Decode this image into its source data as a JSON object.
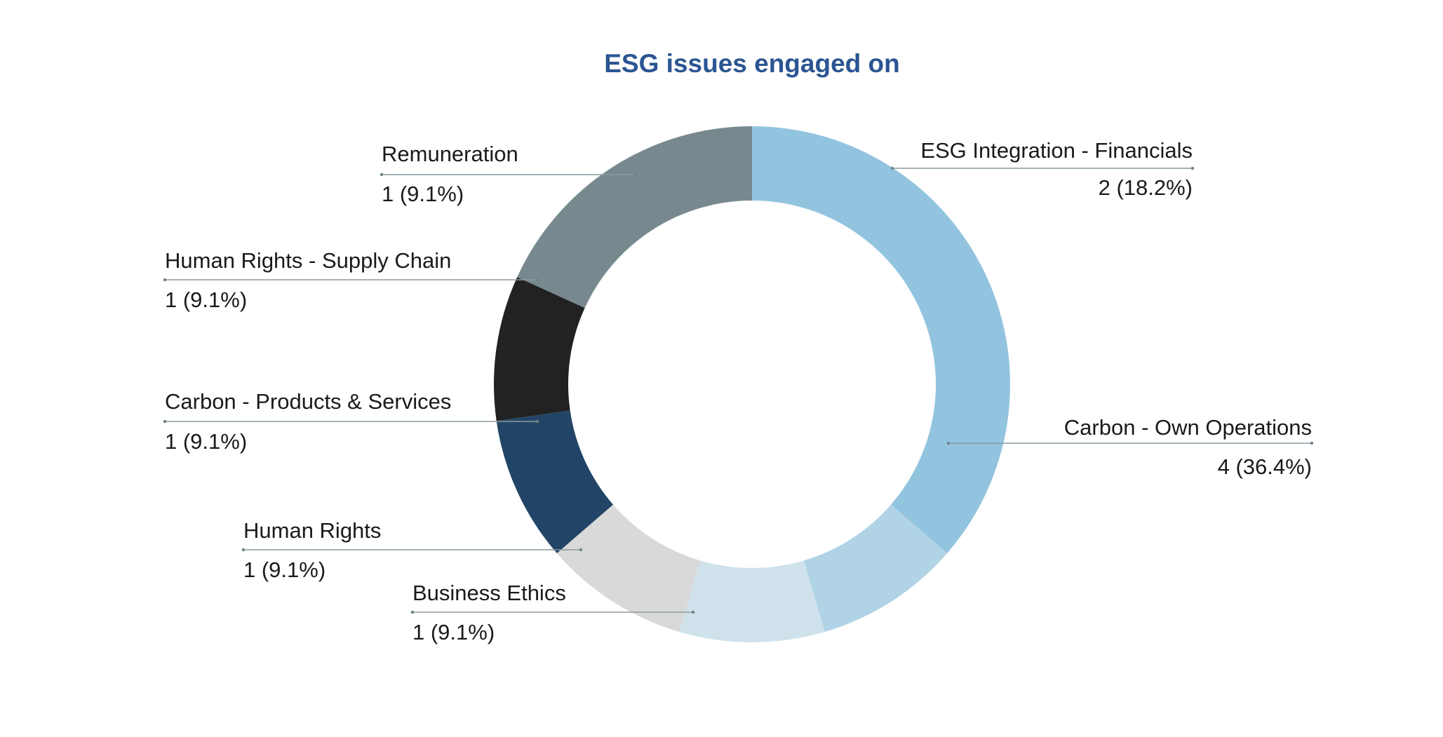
{
  "chart_data": {
    "type": "pie",
    "title": "ESG issues engaged on",
    "title_color": "#2b5592",
    "donut": true,
    "slices": [
      {
        "label": "Carbon - Own Operations",
        "value": 4,
        "value_label": "4 (36.4%)",
        "color": "#93c4df"
      },
      {
        "label": "Business Ethics",
        "value": 1,
        "value_label": "1 (9.1%)",
        "color": "#b0d3e6"
      },
      {
        "label": "Human Rights",
        "value": 1,
        "value_label": "1 (9.1%)",
        "color": "#cfe2ec"
      },
      {
        "label": "Carbon - Products & Services",
        "value": 1,
        "value_label": "1 (9.1%)",
        "color": "#d9d9d9"
      },
      {
        "label": "Human Rights - Supply Chain",
        "value": 1,
        "value_label": "1 (9.1%)",
        "color": "#224567"
      },
      {
        "label": "Remuneration",
        "value": 1,
        "value_label": "1 (9.1%)",
        "color": "#222222"
      },
      {
        "label": "ESG Integration - Financials",
        "value": 2,
        "value_label": "2 (18.2%)",
        "color": "#77898f"
      }
    ]
  }
}
